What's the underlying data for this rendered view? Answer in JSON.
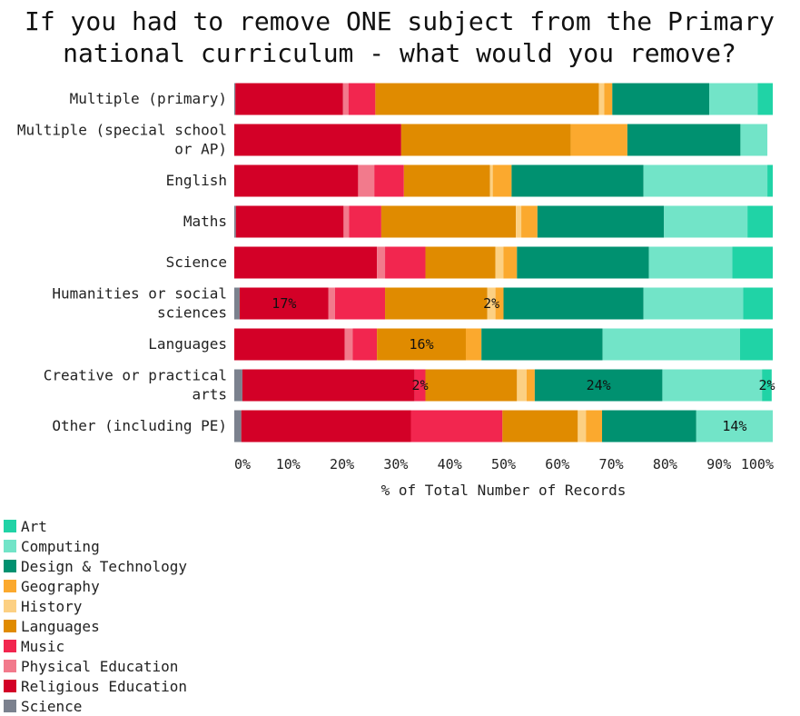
{
  "chart_data": {
    "type": "bar",
    "orientation": "horizontal",
    "stacked": true,
    "title": [
      "If you had to remove ONE subject from the Primary",
      "national curriculum - what would you remove?"
    ],
    "xlabel": "% of Total Number of Records",
    "ylabel": "",
    "xlim": [
      0,
      100
    ],
    "xticks": [
      "0%",
      "10%",
      "20%",
      "30%",
      "40%",
      "50%",
      "60%",
      "70%",
      "80%",
      "90%",
      "100%"
    ],
    "grid": false,
    "legend_position": "bottom-left",
    "categories": [
      [
        "Multiple (primary)"
      ],
      [
        "Multiple (special school",
        "or AP)"
      ],
      [
        "English"
      ],
      [
        "Maths"
      ],
      [
        "Science"
      ],
      [
        "Humanities or social",
        "sciences"
      ],
      [
        "Languages"
      ],
      [
        "Creative or practical",
        "arts"
      ],
      [
        "Other (including PE)"
      ]
    ],
    "series": [
      {
        "name": "Science",
        "color": "#7b818e",
        "values": [
          0.2,
          0,
          0,
          0.3,
          0,
          1,
          0,
          1.5,
          1.3
        ]
      },
      {
        "name": "Religious Education",
        "color": "#d30027",
        "values": [
          20,
          31,
          23,
          20,
          26.5,
          16.5,
          20.5,
          32,
          31.5
        ]
      },
      {
        "name": "Physical Education",
        "color": "#f27a8c",
        "values": [
          1,
          0,
          3,
          1,
          1.5,
          1.2,
          1.5,
          0,
          0
        ]
      },
      {
        "name": "Music",
        "color": "#f2264f",
        "values": [
          5,
          0,
          5.5,
          6,
          7.5,
          9.3,
          4.5,
          2,
          17
        ]
      },
      {
        "name": "Languages",
        "color": "#e08b00",
        "values": [
          41.5,
          31.5,
          16,
          25,
          13,
          19,
          16.5,
          17,
          14
        ]
      },
      {
        "name": "History",
        "color": "#fcd083",
        "values": [
          1,
          0,
          0.5,
          1,
          1.5,
          1.5,
          0,
          1.8,
          1.5
        ]
      },
      {
        "name": "Geography",
        "color": "#fba92e",
        "values": [
          1.5,
          10.5,
          3.5,
          3,
          2.5,
          1.5,
          2.9,
          1.5,
          3
        ]
      },
      {
        "name": "Design & Technology",
        "color": "#009170",
        "values": [
          18,
          21,
          24.5,
          23.5,
          24.5,
          26,
          22.5,
          23.7,
          17.5
        ]
      },
      {
        "name": "Computing",
        "color": "#72e4c8",
        "values": [
          9,
          5,
          23,
          15.5,
          15.5,
          18.5,
          25.5,
          18.5,
          14.2
        ]
      },
      {
        "name": "Art",
        "color": "#20d3a6",
        "values": [
          2.8,
          0,
          1,
          4.7,
          7.5,
          5.5,
          6.1,
          1.8,
          0
        ]
      }
    ],
    "data_labels": [
      {
        "category_index": 5,
        "series": "Religious Education",
        "text": "17%"
      },
      {
        "category_index": 5,
        "series": "History",
        "text": "2%"
      },
      {
        "category_index": 6,
        "series": "Languages",
        "text": "16%"
      },
      {
        "category_index": 7,
        "series": "Music",
        "text": "2%"
      },
      {
        "category_index": 7,
        "series": "Design & Technology",
        "text": "24%"
      },
      {
        "category_index": 7,
        "series": "Art",
        "text": "2%"
      },
      {
        "category_index": 8,
        "series": "Computing",
        "text": "14%"
      }
    ],
    "legend_order": [
      "Art",
      "Computing",
      "Design & Technology",
      "Geography",
      "History",
      "Languages",
      "Music",
      "Physical Education",
      "Religious Education",
      "Science"
    ]
  }
}
